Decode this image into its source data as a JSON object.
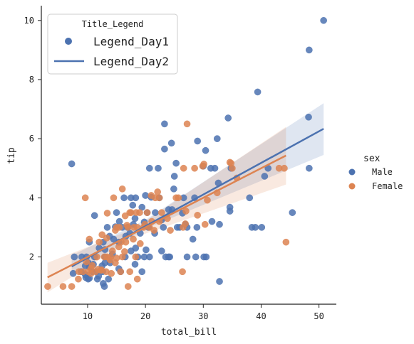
{
  "chart_data": {
    "type": "scatter",
    "xlabel": "total_bill",
    "ylabel": "tip",
    "xlim": [
      2,
      53
    ],
    "ylim": [
      0.4,
      10.5
    ],
    "x_ticks": [
      10,
      20,
      30,
      40,
      50
    ],
    "y_ticks": [
      2,
      4,
      6,
      8,
      10
    ],
    "grid": false,
    "colors": {
      "male": "#4c72b0",
      "female": "#dd8452"
    },
    "inner_legend": {
      "title": "Title_Legend",
      "items": [
        {
          "label": "Legend_Day1",
          "marker": "dot"
        },
        {
          "label": "Legend_Day2",
          "marker": "line"
        }
      ],
      "placement": "top-left"
    },
    "side_legend": {
      "title": "sex",
      "items": [
        {
          "label": "Male",
          "color": "#4c72b0"
        },
        {
          "label": "Female",
          "color": "#dd8452"
        }
      ],
      "placement": "right"
    },
    "series": [
      {
        "name": "Male",
        "color": "#4c72b0",
        "points": [
          [
            50.8,
            10.0
          ],
          [
            48.3,
            9.0
          ],
          [
            39.4,
            7.58
          ],
          [
            48.2,
            6.73
          ],
          [
            34.3,
            6.7
          ],
          [
            23.3,
            6.5
          ],
          [
            32.4,
            6.0
          ],
          [
            29.0,
            5.92
          ],
          [
            24.5,
            5.85
          ],
          [
            30.4,
            5.6
          ],
          [
            23.3,
            5.65
          ],
          [
            7.25,
            5.15
          ],
          [
            30.0,
            5.07
          ],
          [
            20.7,
            5.0
          ],
          [
            32.0,
            5.0
          ],
          [
            22.2,
            5.0
          ],
          [
            41.2,
            5.0
          ],
          [
            48.3,
            5.0
          ],
          [
            34.8,
            5.0
          ],
          [
            25.3,
            5.17
          ],
          [
            31.3,
            5.0
          ],
          [
            25.0,
            4.73
          ],
          [
            40.6,
            4.73
          ],
          [
            24.9,
            4.3
          ],
          [
            32.6,
            4.5
          ],
          [
            20.0,
            4.08
          ],
          [
            21.0,
            4.02
          ],
          [
            16.3,
            4.0
          ],
          [
            17.5,
            4.0
          ],
          [
            18.3,
            4.0
          ],
          [
            26.6,
            4.0
          ],
          [
            22.4,
            4.0
          ],
          [
            38.0,
            4.0
          ],
          [
            28.5,
            4.0
          ],
          [
            20.3,
            3.5
          ],
          [
            21.7,
            3.5
          ],
          [
            17.8,
            3.75
          ],
          [
            15.0,
            3.5
          ],
          [
            19.4,
            3.68
          ],
          [
            24.0,
            3.6
          ],
          [
            34.6,
            3.55
          ],
          [
            34.6,
            3.68
          ],
          [
            26.4,
            3.48
          ],
          [
            45.4,
            3.5
          ],
          [
            18.2,
            3.3
          ],
          [
            11.2,
            3.4
          ],
          [
            22.8,
            3.25
          ],
          [
            16.0,
            3.0
          ],
          [
            23.1,
            3.0
          ],
          [
            27.2,
            3.0
          ],
          [
            20.5,
            3.0
          ],
          [
            25.9,
            3.0
          ],
          [
            16.9,
            3.0
          ],
          [
            13.4,
            3.0
          ],
          [
            14.8,
            3.02
          ],
          [
            26.9,
            3.1
          ],
          [
            38.4,
            3.0
          ],
          [
            39.0,
            3.0
          ],
          [
            40.1,
            3.0
          ],
          [
            31.5,
            3.2
          ],
          [
            32.8,
            3.1
          ],
          [
            28.9,
            3.0
          ],
          [
            15.5,
            3.2
          ],
          [
            17.9,
            3.1
          ],
          [
            19.8,
            3.18
          ],
          [
            12.7,
            2.5
          ],
          [
            14.5,
            2.6
          ],
          [
            19.1,
            2.8
          ],
          [
            21.6,
            2.8
          ],
          [
            16.6,
            2.7
          ],
          [
            13.8,
            2.7
          ],
          [
            10.3,
            2.5
          ],
          [
            13.0,
            2.25
          ],
          [
            15.4,
            2.5
          ],
          [
            18.3,
            2.3
          ],
          [
            20.1,
            2.24
          ],
          [
            12.0,
            2.3
          ],
          [
            11.2,
            2.0
          ],
          [
            22.8,
            2.2
          ],
          [
            17.5,
            2.2
          ],
          [
            14.3,
            2.1
          ],
          [
            9.8,
            2.0
          ],
          [
            7.7,
            2.0
          ],
          [
            9.0,
            2.0
          ],
          [
            13.0,
            2.0
          ],
          [
            16.5,
            2.0
          ],
          [
            19.8,
            2.0
          ],
          [
            24.0,
            2.0
          ],
          [
            24.2,
            2.0
          ],
          [
            23.5,
            2.0
          ],
          [
            27.2,
            2.0
          ],
          [
            30.1,
            2.0
          ],
          [
            30.5,
            2.0
          ],
          [
            28.7,
            2.0
          ],
          [
            20.7,
            2.0
          ],
          [
            15.4,
            1.6
          ],
          [
            12.6,
            1.5
          ],
          [
            11.5,
            1.5
          ],
          [
            8.9,
            1.5
          ],
          [
            19.4,
            1.5
          ],
          [
            10.1,
            1.8
          ],
          [
            15.7,
            1.5
          ],
          [
            13.9,
            1.8
          ],
          [
            11.0,
            1.75
          ],
          [
            18.2,
            1.75
          ],
          [
            9.6,
            1.4
          ],
          [
            7.5,
            1.44
          ],
          [
            10.3,
            1.66
          ],
          [
            10.8,
            1.5
          ],
          [
            11.9,
            1.35
          ],
          [
            12.5,
            1.7
          ],
          [
            9.7,
            1.3
          ],
          [
            10.1,
            1.25
          ],
          [
            10.3,
            1.28
          ],
          [
            12.9,
            1.0
          ],
          [
            13.6,
            1.25
          ],
          [
            11.7,
            1.25
          ],
          [
            32.8,
            1.17
          ],
          [
            12.7,
            1.1
          ],
          [
            13.0,
            1.8
          ],
          [
            24.6,
            3.6
          ],
          [
            25.5,
            3.0
          ],
          [
            28.2,
            2.6
          ],
          [
            17.3,
            2.8
          ],
          [
            18.7,
            2.0
          ],
          [
            9.6,
            1.7
          ]
        ]
      },
      {
        "name": "Female",
        "color": "#dd8452",
        "points": [
          [
            27.2,
            6.5
          ],
          [
            30.1,
            5.14
          ],
          [
            29.9,
            5.07
          ],
          [
            34.6,
            5.2
          ],
          [
            35.0,
            5.0
          ],
          [
            34.8,
            5.17
          ],
          [
            26.6,
            5.0
          ],
          [
            43.1,
            5.0
          ],
          [
            44.3,
            2.5
          ],
          [
            35.8,
            4.67
          ],
          [
            16.0,
            4.3
          ],
          [
            22.1,
            4.2
          ],
          [
            21.0,
            4.08
          ],
          [
            25.3,
            4.0
          ],
          [
            14.5,
            4.0
          ],
          [
            9.6,
            4.0
          ],
          [
            25.7,
            4.0
          ],
          [
            22.4,
            4.0
          ],
          [
            30.7,
            3.92
          ],
          [
            32.4,
            4.17
          ],
          [
            19.0,
            3.5
          ],
          [
            18.4,
            3.5
          ],
          [
            17.5,
            3.5
          ],
          [
            20.3,
            3.5
          ],
          [
            22.8,
            3.5
          ],
          [
            16.5,
            3.39
          ],
          [
            17.3,
            3.5
          ],
          [
            13.4,
            3.48
          ],
          [
            23.8,
            3.3
          ],
          [
            21.1,
            3.2
          ],
          [
            18.6,
            3.0
          ],
          [
            15.0,
            3.0
          ],
          [
            17.0,
            3.0
          ],
          [
            18.0,
            3.0
          ],
          [
            20.7,
            3.0
          ],
          [
            22.4,
            3.2
          ],
          [
            19.7,
            3.0
          ],
          [
            21.5,
            2.9
          ],
          [
            26.5,
            3.0
          ],
          [
            24.3,
            2.9
          ],
          [
            30.3,
            3.1
          ],
          [
            15.5,
            3.0
          ],
          [
            16.8,
            3.07
          ],
          [
            14.8,
            2.9
          ],
          [
            12.5,
            2.75
          ],
          [
            13.3,
            2.64
          ],
          [
            17.9,
            2.6
          ],
          [
            15.8,
            2.5
          ],
          [
            16.6,
            2.5
          ],
          [
            19.1,
            2.45
          ],
          [
            14.0,
            2.0
          ],
          [
            12.0,
            2.5
          ],
          [
            10.3,
            2.6
          ],
          [
            13.4,
            2.0
          ],
          [
            13.9,
            1.9
          ],
          [
            11.6,
            2.0
          ],
          [
            15.4,
            2.34
          ],
          [
            14.3,
            2.2
          ],
          [
            16.4,
            2.18
          ],
          [
            18.3,
            2.0
          ],
          [
            12.9,
            2.0
          ],
          [
            14.8,
            1.8
          ],
          [
            10.6,
            1.61
          ],
          [
            10.1,
            1.5
          ],
          [
            8.5,
            1.5
          ],
          [
            11.8,
            1.58
          ],
          [
            13.2,
            1.5
          ],
          [
            12.4,
            1.56
          ],
          [
            15.0,
            1.96
          ],
          [
            16.0,
            2.0
          ],
          [
            11.4,
            1.5
          ],
          [
            9.2,
            1.5
          ],
          [
            10.8,
            1.71
          ],
          [
            14.1,
            1.44
          ],
          [
            17.3,
            1.5
          ],
          [
            18.6,
            1.25
          ],
          [
            26.4,
            1.5
          ],
          [
            12.3,
            1.55
          ],
          [
            10.6,
            1.44
          ],
          [
            9.8,
            1.83
          ],
          [
            15.7,
            1.5
          ],
          [
            7.25,
            1.0
          ],
          [
            3.1,
            1.0
          ],
          [
            5.75,
            1.0
          ],
          [
            17.0,
            1.0
          ],
          [
            8.4,
            1.25
          ],
          [
            26.9,
            3.12
          ],
          [
            27.0,
            3.55
          ],
          [
            29.0,
            3.41
          ],
          [
            19.9,
            3.1
          ],
          [
            44.0,
            5.0
          ],
          [
            21.7,
            4.0
          ],
          [
            28.5,
            5.0
          ]
        ]
      }
    ],
    "fits": [
      {
        "name": "Male",
        "color": "#4c72b0",
        "x_range": [
          7.25,
          50.8
        ],
        "intercept": 0.9,
        "slope": 0.107,
        "band_lo_hi": [
          [
            7.25,
            1.38,
            2.05
          ],
          [
            20,
            2.95,
            3.25
          ],
          [
            50.8,
            5.45,
            7.2
          ]
        ]
      },
      {
        "name": "Female",
        "color": "#dd8452",
        "x_range": [
          3.07,
          44.3
        ],
        "intercept": 1.0,
        "slope": 0.1,
        "band_lo_hi": [
          [
            3.07,
            0.8,
            1.8
          ],
          [
            18,
            2.65,
            2.95
          ],
          [
            44.3,
            4.45,
            6.4
          ]
        ]
      }
    ]
  }
}
